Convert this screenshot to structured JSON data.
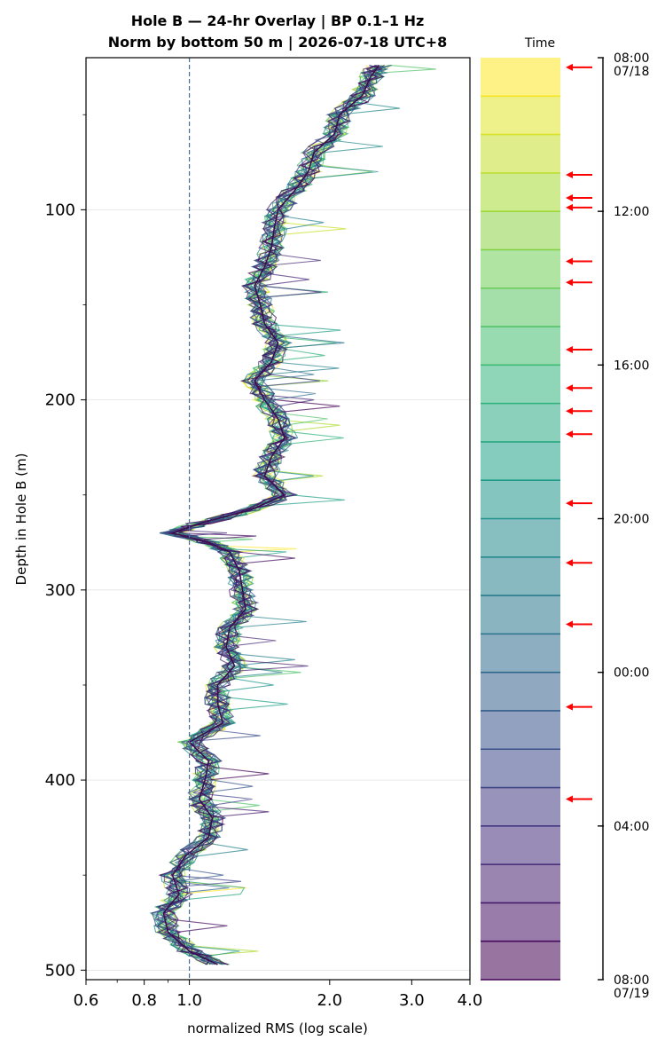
{
  "chart_data": {
    "type": "line",
    "title_line1": "Hole B — 24-hr Overlay  |  BP 0.1–1 Hz",
    "title_line2": "Norm by bottom 50 m  |  2026-07-18 UTC+8",
    "xlabel": "normalized RMS  (log scale)",
    "ylabel": "Depth in Hole B (m)",
    "x_scale": "log",
    "xlim": [
      0.6,
      4.0
    ],
    "ylim": [
      505,
      20
    ],
    "xticks": [
      {
        "value": 0.6,
        "label": "0.6"
      },
      {
        "value": 0.8,
        "label": "0.8"
      },
      {
        "value": 1.0,
        "label": "1.0"
      },
      {
        "value": 2.0,
        "label": "2.0"
      },
      {
        "value": 3.0,
        "label": "3.0"
      },
      {
        "value": 4.0,
        "label": "4.0"
      }
    ],
    "yticks": [
      {
        "value": 100,
        "label": "100"
      },
      {
        "value": 200,
        "label": "200"
      },
      {
        "value": 300,
        "label": "300"
      },
      {
        "value": 400,
        "label": "400"
      },
      {
        "value": 500,
        "label": "500"
      }
    ],
    "reference_line_x": 1.0,
    "grid": "horizontal",
    "median_profile": {
      "depth": [
        24,
        30,
        40,
        50,
        60,
        70,
        80,
        90,
        100,
        110,
        120,
        130,
        140,
        150,
        160,
        170,
        180,
        190,
        200,
        210,
        220,
        230,
        240,
        250,
        258,
        265,
        270,
        275,
        280,
        290,
        300,
        310,
        320,
        330,
        340,
        350,
        360,
        370,
        380,
        390,
        400,
        410,
        420,
        430,
        440,
        450,
        460,
        470,
        480,
        490,
        497
      ],
      "rms": [
        2.55,
        2.45,
        2.35,
        2.1,
        2.05,
        1.85,
        1.8,
        1.68,
        1.55,
        1.52,
        1.5,
        1.45,
        1.38,
        1.42,
        1.45,
        1.55,
        1.5,
        1.38,
        1.45,
        1.55,
        1.6,
        1.5,
        1.45,
        1.6,
        1.35,
        1.05,
        0.92,
        1.1,
        1.22,
        1.28,
        1.3,
        1.32,
        1.22,
        1.2,
        1.25,
        1.15,
        1.15,
        1.18,
        1.0,
        1.1,
        1.08,
        1.05,
        1.12,
        1.1,
        0.98,
        0.92,
        0.95,
        0.88,
        0.9,
        1.0,
        1.15
      ]
    },
    "colorbar": {
      "label": "Time",
      "colormap": "viridis",
      "n_bands": 24,
      "start_hour_offset": 0,
      "tick_labels": [
        {
          "hour": 0,
          "label": "08:00",
          "sublabel": "07/18"
        },
        {
          "hour": 4,
          "label": "12:00",
          "sublabel": ""
        },
        {
          "hour": 8,
          "label": "16:00",
          "sublabel": ""
        },
        {
          "hour": 12,
          "label": "20:00",
          "sublabel": ""
        },
        {
          "hour": 16,
          "label": "00:00",
          "sublabel": ""
        },
        {
          "hour": 20,
          "label": "04:00",
          "sublabel": ""
        },
        {
          "hour": 24,
          "label": "08:00",
          "sublabel": "07/19"
        }
      ],
      "arrow_hours": [
        0.25,
        3.05,
        3.65,
        3.9,
        5.3,
        5.85,
        7.6,
        8.6,
        9.2,
        9.8,
        11.6,
        13.15,
        14.75,
        16.9,
        19.3
      ],
      "arrow_color": "#ff0000"
    }
  }
}
